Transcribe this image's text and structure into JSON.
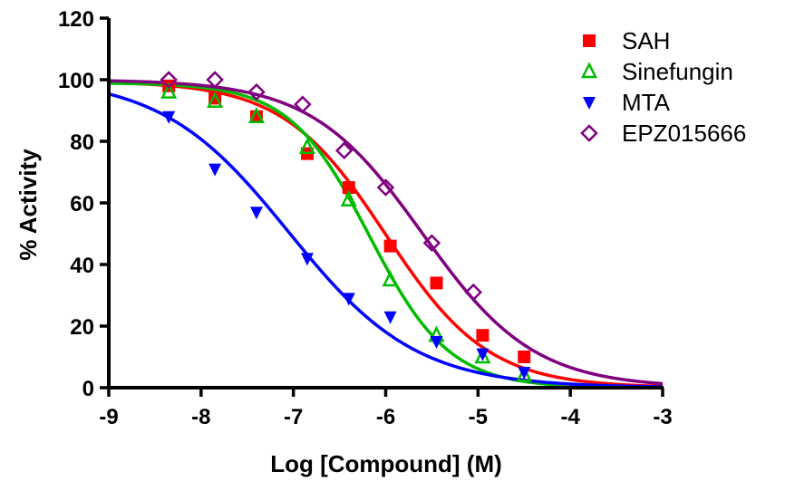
{
  "chart_data": {
    "type": "scatter",
    "title": "",
    "xlabel": "Log [Compound] (M)",
    "ylabel": "% Activity",
    "xlim": [
      -9,
      -3
    ],
    "ylim": [
      0,
      120
    ],
    "xticks": [
      -9,
      -8,
      -7,
      -6,
      -5,
      -4,
      -3
    ],
    "yticks": [
      0,
      20,
      40,
      60,
      80,
      100,
      120
    ],
    "xtick_labels": [
      "-9",
      "-8",
      "-7",
      "-6",
      "-5",
      "-4",
      "-3"
    ],
    "ytick_labels": [
      "0",
      "20",
      "40",
      "60",
      "80",
      "100",
      "120"
    ],
    "grid": false,
    "legend_position": "top-right",
    "fit": "sigmoidal dose-response curve through each series",
    "series": [
      {
        "name": "SAH",
        "marker": "filled-square",
        "color": "#ff0000",
        "x": [
          -8.35,
          -7.85,
          -7.4,
          -6.85,
          -6.4,
          -5.95,
          -5.45,
          -4.95,
          -4.5
        ],
        "y": [
          98,
          94,
          88,
          76,
          65,
          46,
          34,
          17,
          10
        ],
        "fit": {
          "top": 99.5,
          "bottom": 0,
          "logIC50": -6.0,
          "hill": 0.78
        }
      },
      {
        "name": "Sinefungin",
        "marker": "open-triangle-up",
        "color": "#00bb00",
        "x": [
          -8.35,
          -7.85,
          -7.4,
          -6.85,
          -6.4,
          -5.95,
          -5.45,
          -4.95,
          -4.5
        ],
        "y": [
          96,
          93,
          88,
          78,
          61,
          35,
          17,
          10,
          4
        ],
        "fit": {
          "top": 99,
          "bottom": 0,
          "logIC50": -6.18,
          "hill": 1.0
        }
      },
      {
        "name": "MTA",
        "marker": "filled-triangle-down",
        "color": "#0000ff",
        "x": [
          -8.35,
          -7.85,
          -7.4,
          -6.85,
          -6.4,
          -5.95,
          -5.45,
          -4.95,
          -4.5
        ],
        "y": [
          88,
          71,
          57,
          42,
          29,
          23,
          15,
          11,
          5
        ],
        "fit": {
          "top": 101,
          "bottom": 0,
          "logIC50": -7.05,
          "hill": 0.63
        }
      },
      {
        "name": "EPZ015666",
        "marker": "open-diamond",
        "color": "#800080",
        "x": [
          -8.35,
          -7.85,
          -7.4,
          -6.9,
          -6.45,
          -6.0,
          -5.5,
          -5.05
        ],
        "y": [
          100,
          100,
          96,
          92,
          77,
          65,
          47,
          31
        ],
        "fit": {
          "top": 100,
          "bottom": 0,
          "logIC50": -5.6,
          "hill": 0.72
        }
      }
    ]
  }
}
